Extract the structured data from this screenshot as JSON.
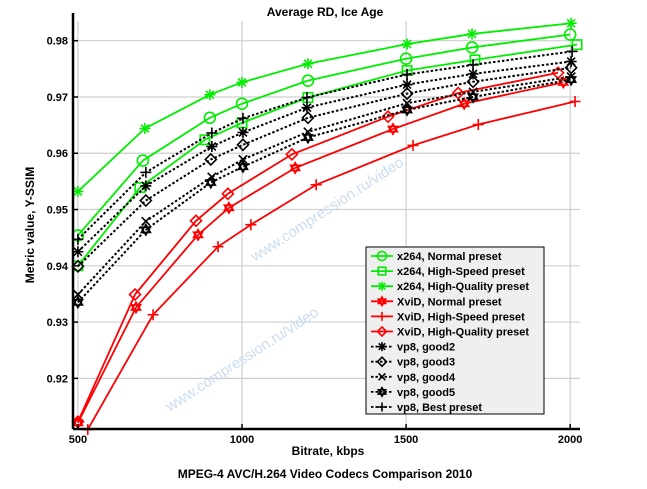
{
  "chart_data": {
    "type": "line",
    "title": "Average RD, Ice Age",
    "xlabel": "Bitrate, kbps",
    "ylabel": "Metric value, Y-SSIM",
    "footer": "MPEG-4 AVC/H.264 Video Codecs Comparison 2010",
    "watermark": "www.compression.ru/video",
    "xlim": [
      485,
      2030
    ],
    "ylim": [
      0.911,
      0.9835
    ],
    "xticks": [
      500,
      1000,
      1500,
      2000
    ],
    "xtick_labels": [
      "500",
      "1000",
      "1500",
      "2000"
    ],
    "yticks": [
      0.92,
      0.93,
      0.94,
      0.95,
      0.96,
      0.97,
      0.98
    ],
    "ytick_labels": [
      "0.92",
      "0.93",
      "0.94",
      "0.95",
      "0.96",
      "0.97",
      "0.98"
    ],
    "grid": true,
    "legend_position": "bottom-right",
    "series": [
      {
        "name": "x264, Normal preset",
        "color": "#00ee00",
        "marker": "circle",
        "dash": false,
        "x": [
          500,
          698,
          902,
          1000,
          1201,
          1500,
          1701,
          2000
        ],
        "y": [
          0.9454,
          0.9587,
          0.9663,
          0.9688,
          0.9729,
          0.9768,
          0.9788,
          0.9811
        ]
      },
      {
        "name": "x264, High-Speed preset",
        "color": "#00ee00",
        "marker": "square",
        "dash": false,
        "x": [
          500,
          689,
          887,
          1000,
          1201,
          1503,
          1710,
          2021
        ],
        "y": [
          0.94,
          0.9539,
          0.9624,
          0.9654,
          0.9699,
          0.9747,
          0.9766,
          0.9793
        ]
      },
      {
        "name": "x264, High-Quality preset",
        "color": "#00ee00",
        "marker": "asterisk",
        "dash": false,
        "x": [
          500,
          704,
          902,
          1000,
          1201,
          1503,
          1701,
          2003
        ],
        "y": [
          0.9532,
          0.9644,
          0.9704,
          0.9726,
          0.9759,
          0.9794,
          0.9812,
          0.9831
        ]
      },
      {
        "name": "XviD, Normal preset",
        "color": "#ff0000",
        "marker": "hexagram",
        "dash": false,
        "x": [
          500,
          677,
          866,
          960,
          1162,
          1460,
          1677,
          1979
        ],
        "y": [
          0.9121,
          0.9326,
          0.9455,
          0.9503,
          0.9574,
          0.9643,
          0.9688,
          0.9726
        ]
      },
      {
        "name": "XviD, High-Speed preset",
        "color": "#ff0000",
        "marker": "plus",
        "dash": false,
        "x": [
          530,
          729,
          927,
          1027,
          1226,
          1521,
          1720,
          2015
        ],
        "y": [
          0.9109,
          0.9313,
          0.9434,
          0.9473,
          0.9544,
          0.9614,
          0.9651,
          0.9692
        ]
      },
      {
        "name": "XviD, High-Quality preset",
        "color": "#ff0000",
        "marker": "diamond",
        "dash": false,
        "x": [
          500,
          674,
          860,
          957,
          1152,
          1445,
          1659,
          1963
        ],
        "y": [
          0.9123,
          0.9349,
          0.948,
          0.9528,
          0.9598,
          0.9665,
          0.9707,
          0.9743
        ]
      },
      {
        "name": "vp8, good2",
        "color": "#000000",
        "marker": "asterisk",
        "dash": true,
        "x": [
          500,
          707,
          908,
          1003,
          1198,
          1503,
          1704,
          2003
        ],
        "y": [
          0.9425,
          0.9542,
          0.9612,
          0.9637,
          0.9681,
          0.9722,
          0.9741,
          0.9763
        ]
      },
      {
        "name": "vp8, good3",
        "color": "#000000",
        "marker": "diamond",
        "dash": true,
        "x": [
          500,
          707,
          905,
          1003,
          1201,
          1503,
          1704,
          2003
        ],
        "y": [
          0.9399,
          0.9516,
          0.9589,
          0.9615,
          0.9663,
          0.9706,
          0.9727,
          0.9752
        ]
      },
      {
        "name": "vp8, good4",
        "color": "#000000",
        "marker": "x",
        "dash": true,
        "x": [
          500,
          707,
          908,
          1003,
          1201,
          1503,
          1704,
          2003
        ],
        "y": [
          0.9349,
          0.9479,
          0.9558,
          0.9589,
          0.9638,
          0.9689,
          0.9709,
          0.9736
        ]
      },
      {
        "name": "vp8, good5",
        "color": "#000000",
        "marker": "hexagram",
        "dash": true,
        "x": [
          500,
          707,
          905,
          1003,
          1201,
          1503,
          1704,
          2003
        ],
        "y": [
          0.9335,
          0.9464,
          0.9548,
          0.9576,
          0.9628,
          0.9677,
          0.97,
          0.9731
        ]
      },
      {
        "name": "vp8, Best preset",
        "color": "#000000",
        "marker": "plus",
        "dash": true,
        "x": [
          500,
          707,
          908,
          1003,
          1198,
          1503,
          1704,
          2006
        ],
        "y": [
          0.9447,
          0.9566,
          0.9636,
          0.9662,
          0.9699,
          0.974,
          0.9757,
          0.9781
        ]
      }
    ]
  }
}
